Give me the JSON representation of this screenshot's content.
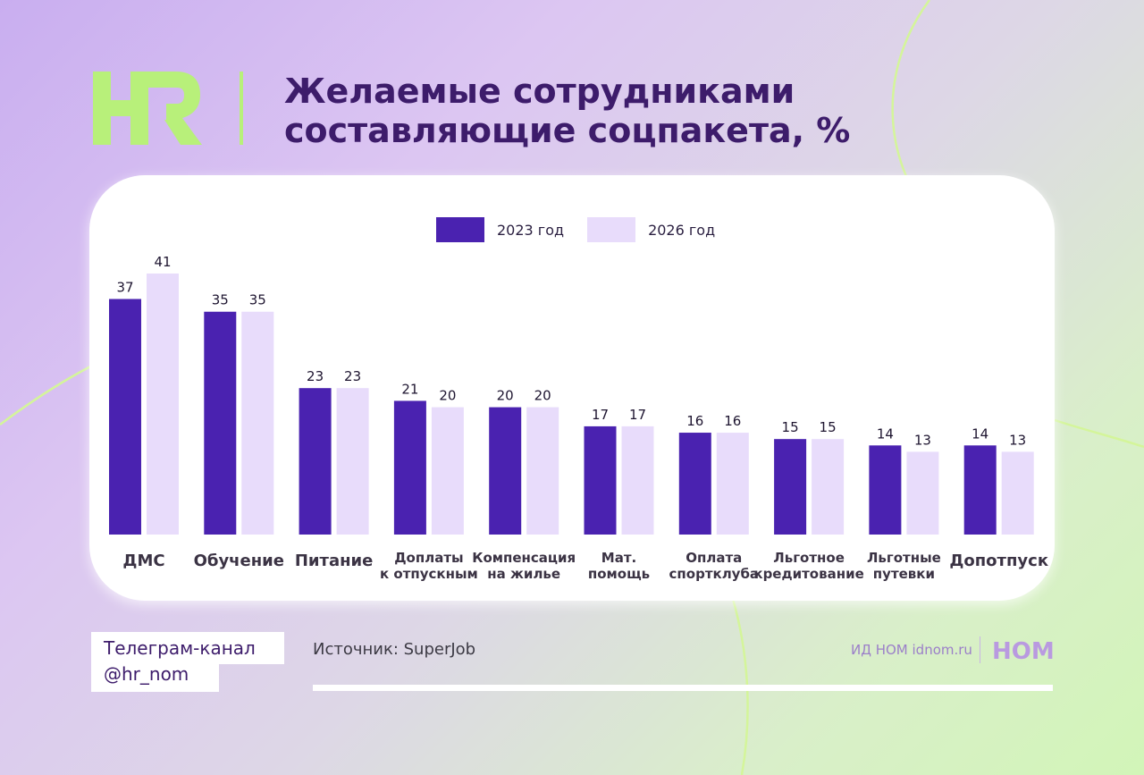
{
  "header": {
    "logo_text": "HR",
    "title_line1": "Желаемые сотрудниками",
    "title_line2": "составляющие соцпакета, %"
  },
  "colors": {
    "series_2023": "#4a22b0",
    "series_2026": "#e8dcfb",
    "title": "#3d1c6b",
    "accent_green": "#b8f07a"
  },
  "chart_data": {
    "type": "bar",
    "title": "Желаемые сотрудниками составляющие соцпакета, %",
    "categories": [
      [
        "ДМС"
      ],
      [
        "Обучение"
      ],
      [
        "Питание"
      ],
      [
        "Доплаты",
        "к отпускным"
      ],
      [
        "Компенсация",
        "на жилье"
      ],
      [
        "Мат.",
        "помощь"
      ],
      [
        "Оплата",
        "спортклуба"
      ],
      [
        "Льготное",
        "кредитование"
      ],
      [
        "Льготные",
        "путевки"
      ],
      [
        "Допотпуск"
      ]
    ],
    "series": [
      {
        "name": "2023 год",
        "values": [
          37,
          35,
          23,
          21,
          20,
          17,
          16,
          15,
          14,
          14
        ]
      },
      {
        "name": "2026 год",
        "values": [
          41,
          35,
          23,
          20,
          20,
          17,
          16,
          15,
          13,
          13
        ]
      }
    ],
    "xlabel": "",
    "ylabel": "",
    "ylim": [
      0,
      41
    ],
    "legend_position": "top-center",
    "grid": false
  },
  "footer": {
    "telegram_line1": "Телеграм-канал",
    "telegram_line2": "@hr_nom",
    "source": "Источник: SuperJob",
    "publisher": "ИД НОМ idnom.ru",
    "publisher_logo": "НОМ"
  }
}
